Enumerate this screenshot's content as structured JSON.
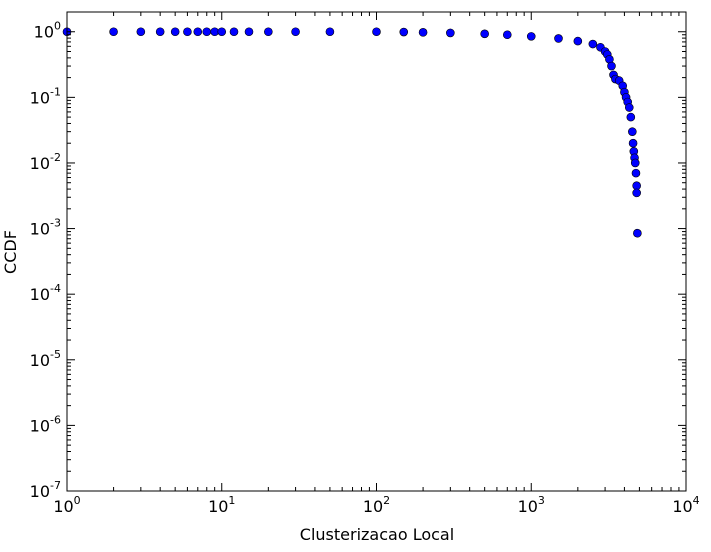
{
  "chart_data": {
    "type": "scatter",
    "xlabel": "Clusterizacao Local",
    "ylabel": "CCDF",
    "x_scale": "log",
    "y_scale": "log",
    "xlim": [
      1,
      10000
    ],
    "ylim": [
      1e-07,
      2
    ],
    "grid": false,
    "x_ticks": [
      {
        "base": "10",
        "exp": "0",
        "value": 1
      },
      {
        "base": "10",
        "exp": "1",
        "value": 10
      },
      {
        "base": "10",
        "exp": "2",
        "value": 100
      },
      {
        "base": "10",
        "exp": "3",
        "value": 1000
      },
      {
        "base": "10",
        "exp": "4",
        "value": 10000
      }
    ],
    "y_ticks": [
      {
        "base": "10",
        "exp": "0",
        "value": 1
      },
      {
        "base": "10",
        "exp": "-1",
        "value": 0.1
      },
      {
        "base": "10",
        "exp": "-2",
        "value": 0.01
      },
      {
        "base": "10",
        "exp": "-3",
        "value": 0.001
      },
      {
        "base": "10",
        "exp": "-4",
        "value": 0.0001
      },
      {
        "base": "10",
        "exp": "-5",
        "value": 1e-05
      },
      {
        "base": "10",
        "exp": "-6",
        "value": 1e-06
      },
      {
        "base": "10",
        "exp": "-7",
        "value": 1e-07
      }
    ],
    "marker_color": "#0000ff",
    "marker_edge_color": "#000000",
    "series": [
      {
        "x": [
          1,
          2,
          3,
          4,
          5,
          6,
          7,
          8,
          9,
          10,
          12,
          15,
          20,
          30,
          50,
          100,
          150,
          200,
          300,
          500,
          700,
          1000,
          1500,
          2000,
          2500,
          2800,
          3000,
          3100,
          3200,
          3300,
          3400,
          3500,
          3700,
          3900,
          4000,
          4100,
          4200,
          4300,
          4400,
          4500,
          4550,
          4600,
          4650,
          4700,
          4750,
          4800,
          4800
        ],
        "y": [
          1,
          1,
          1,
          1,
          1,
          1,
          1,
          1,
          1,
          1,
          1,
          1,
          1,
          1,
          1,
          1,
          0.99,
          0.98,
          0.96,
          0.93,
          0.9,
          0.85,
          0.79,
          0.72,
          0.65,
          0.58,
          0.5,
          0.45,
          0.38,
          0.3,
          0.22,
          0.19,
          0.18,
          0.15,
          0.12,
          0.1,
          0.085,
          0.07,
          0.05,
          0.03,
          0.02,
          0.015,
          0.012,
          0.01,
          0.007,
          0.0045,
          0.0035
        ]
      },
      {
        "x": [
          4850
        ],
        "y": [
          0.00085
        ]
      }
    ]
  }
}
